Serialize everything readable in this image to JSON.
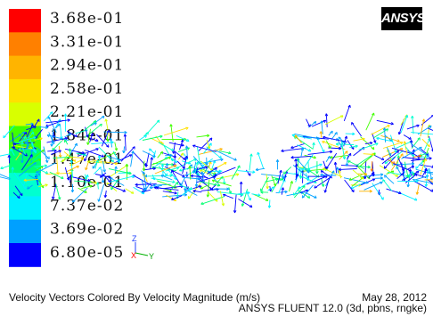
{
  "chart_data": {
    "type": "vector-field",
    "title": "Velocity Vectors Colored By Velocity Magnitude (m/s)",
    "colorbar": {
      "labels": [
        "3.68e-01",
        "3.31e-01",
        "2.94e-01",
        "2.58e-01",
        "2.21e-01",
        "1.84e-01",
        "1.47e-01",
        "1.10e-01",
        "7.37e-02",
        "3.69e-02",
        "6.80e-05"
      ],
      "colors": [
        "#ff0000",
        "#ff8000",
        "#ffb400",
        "#ffe000",
        "#d8ff00",
        "#40ff00",
        "#00ff70",
        "#00ffd0",
        "#00f0ff",
        "#00a0ff",
        "#0000ff"
      ],
      "max": 0.368,
      "min": 6.8e-05
    },
    "triad": {
      "z": "Z",
      "x": "X",
      "y": "Y"
    }
  },
  "footer": {
    "date": "May 28, 2012",
    "version": "ANSYS FLUENT 12.0 (3d, pbns, rngke)"
  },
  "logo": "ANSYS"
}
